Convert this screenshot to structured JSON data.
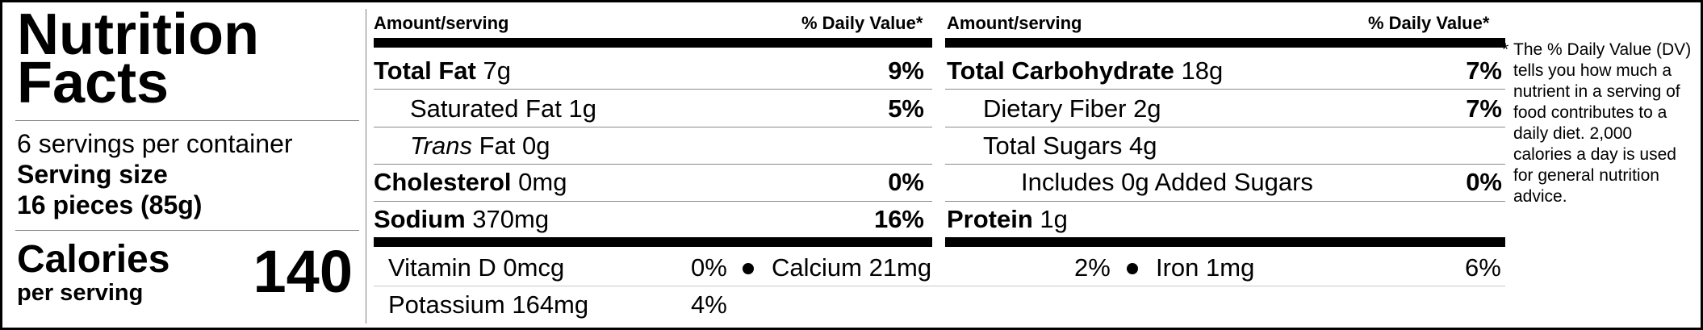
{
  "label": {
    "title_line1": "Nutrition",
    "title_line2": "Facts",
    "servings_per_container": "6 servings per container",
    "serving_size_label": "Serving size",
    "serving_size_value": "16 pieces (85g)",
    "calories_label": "Calories",
    "calories_sub": "per serving",
    "calories_value": "140"
  },
  "left_table": {
    "header_amount": "Amount/serving",
    "header_dv": "% Daily Value*",
    "rows": [
      {
        "name": "Total Fat",
        "amount": "7g",
        "dv": "9%"
      },
      {
        "name": "Saturated Fat",
        "amount": "1g",
        "dv": "5%"
      },
      {
        "name_italic": "Trans",
        "name": "Fat",
        "amount": "0g",
        "dv": ""
      },
      {
        "name": "Cholesterol",
        "amount": "0mg",
        "dv": "0%"
      },
      {
        "name": "Sodium",
        "amount": "370mg",
        "dv": "16%"
      }
    ]
  },
  "right_table": {
    "header_amount": "Amount/serving",
    "header_dv": "% Daily Value*",
    "rows": [
      {
        "name": "Total Carbohydrate",
        "amount": "18g",
        "dv": "7%"
      },
      {
        "name": "Dietary Fiber",
        "amount": "2g",
        "dv": "7%"
      },
      {
        "name": "Total Sugars",
        "amount": "4g",
        "dv": ""
      },
      {
        "name": "Includes 0g Added Sugars",
        "amount": "",
        "dv": "0%"
      },
      {
        "name": "Protein",
        "amount": "1g",
        "dv": ""
      }
    ]
  },
  "vitamins": [
    {
      "name": "Vitamin D 0mcg",
      "dv": "0%"
    },
    {
      "name": "Calcium 21mg",
      "dv": "2%"
    },
    {
      "name": "Iron 1mg",
      "dv": "6%"
    },
    {
      "name": "Potassium 164mg",
      "dv": "4%"
    }
  ],
  "footnote": {
    "marker": "*",
    "text": "The % Daily Value (DV) tells you how much a nutrient in a serving of food contributes to a daily diet. 2,000 calories a day is used for general nutrition advice."
  }
}
